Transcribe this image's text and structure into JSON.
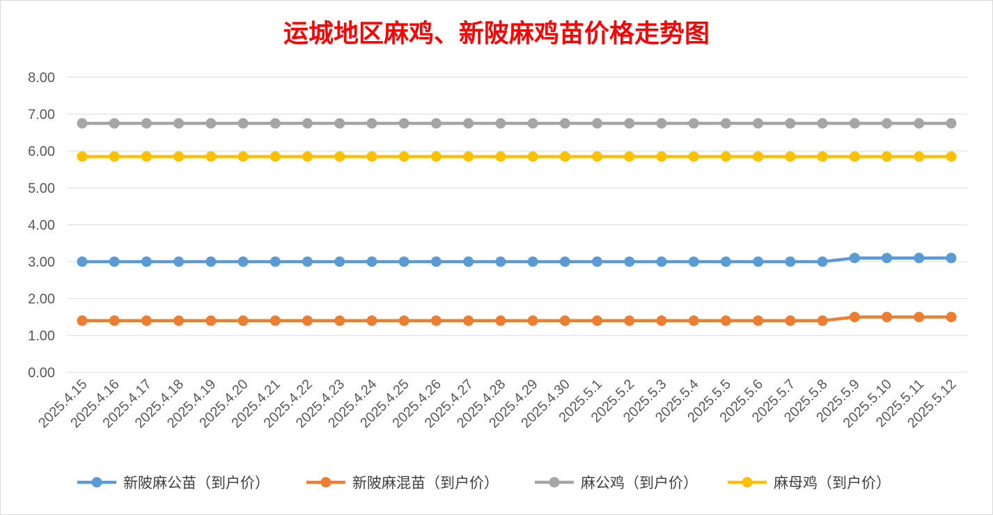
{
  "chart_data": {
    "type": "line",
    "title": "运城地区麻鸡、新陂麻鸡苗价格走势图",
    "xlabel": "",
    "ylabel": "",
    "ylim": [
      0,
      8
    ],
    "yticks": [
      "0.00",
      "1.00",
      "2.00",
      "3.00",
      "4.00",
      "5.00",
      "6.00",
      "7.00",
      "8.00"
    ],
    "grid": true,
    "legend_position": "bottom",
    "categories": [
      "2025.4.15",
      "2025.4.16",
      "2025.4.17",
      "2025.4.18",
      "2025.4.19",
      "2025.4.20",
      "2025.4.21",
      "2025.4.22",
      "2025.4.23",
      "2025.4.24",
      "2025.4.25",
      "2025.4.26",
      "2025.4.27",
      "2025.4.28",
      "2025.4.29",
      "2025.4.30",
      "2025.5.1",
      "2025.5.2",
      "2025.5.3",
      "2025.5.4",
      "2025.5.5",
      "2025.5.6",
      "2025.5.7",
      "2025.5.8",
      "2025.5.9",
      "2025.5.10",
      "2025.5.11",
      "2025.5.12"
    ],
    "series": [
      {
        "name": "新陂麻公苗（到户价）",
        "color": "#5b9bd5",
        "values": [
          3.0,
          3.0,
          3.0,
          3.0,
          3.0,
          3.0,
          3.0,
          3.0,
          3.0,
          3.0,
          3.0,
          3.0,
          3.0,
          3.0,
          3.0,
          3.0,
          3.0,
          3.0,
          3.0,
          3.0,
          3.0,
          3.0,
          3.0,
          3.0,
          3.1,
          3.1,
          3.1,
          3.1
        ]
      },
      {
        "name": "新陂麻混苗（到户价）",
        "color": "#ed7d31",
        "values": [
          1.4,
          1.4,
          1.4,
          1.4,
          1.4,
          1.4,
          1.4,
          1.4,
          1.4,
          1.4,
          1.4,
          1.4,
          1.4,
          1.4,
          1.4,
          1.4,
          1.4,
          1.4,
          1.4,
          1.4,
          1.4,
          1.4,
          1.4,
          1.4,
          1.5,
          1.5,
          1.5,
          1.5
        ]
      },
      {
        "name": "麻公鸡（到户价）",
        "color": "#a5a5a5",
        "values": [
          6.75,
          6.75,
          6.75,
          6.75,
          6.75,
          6.75,
          6.75,
          6.75,
          6.75,
          6.75,
          6.75,
          6.75,
          6.75,
          6.75,
          6.75,
          6.75,
          6.75,
          6.75,
          6.75,
          6.75,
          6.75,
          6.75,
          6.75,
          6.75,
          6.75,
          6.75,
          6.75,
          6.75
        ]
      },
      {
        "name": "麻母鸡（到户价）",
        "color": "#ffc000",
        "values": [
          5.85,
          5.85,
          5.85,
          5.85,
          5.85,
          5.85,
          5.85,
          5.85,
          5.85,
          5.85,
          5.85,
          5.85,
          5.85,
          5.85,
          5.85,
          5.85,
          5.85,
          5.85,
          5.85,
          5.85,
          5.85,
          5.85,
          5.85,
          5.85,
          5.85,
          5.85,
          5.85,
          5.85
        ]
      }
    ]
  }
}
